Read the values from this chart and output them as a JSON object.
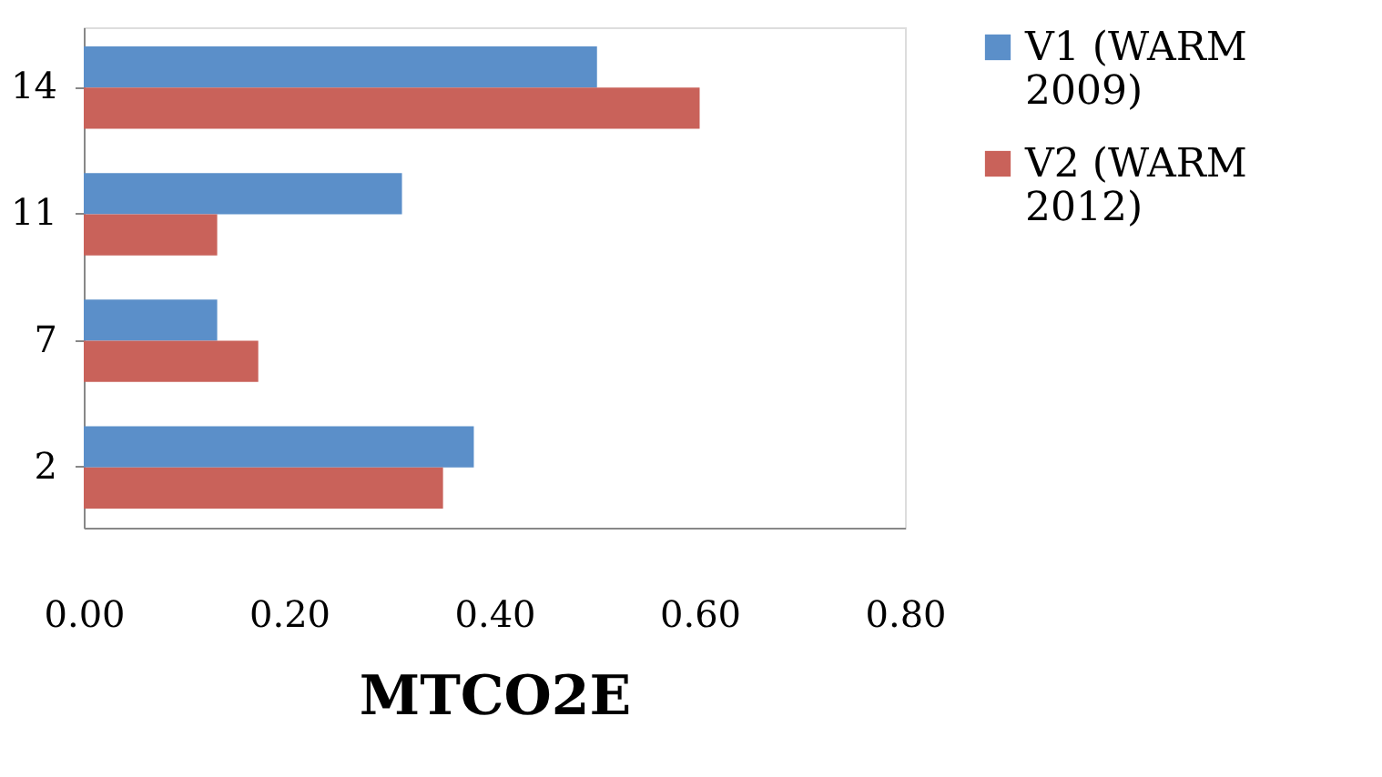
{
  "chart_data": {
    "type": "bar",
    "orientation": "horizontal",
    "xlabel": "MTCO2E",
    "categories": [
      "14",
      "11",
      "7",
      "2"
    ],
    "series": [
      {
        "name": "V1 (WARM 2009)",
        "color": "#5b8fc9",
        "values": [
          0.5,
          0.31,
          0.13,
          0.38
        ]
      },
      {
        "name": "V2 (WARM 2012)",
        "color": "#c9625a",
        "values": [
          0.6,
          0.13,
          0.17,
          0.35
        ]
      }
    ],
    "xlim": [
      0,
      0.8
    ],
    "xticks": [
      {
        "value": 0,
        "label": "0.00"
      },
      {
        "value": 0.2,
        "label": "0.20"
      },
      {
        "value": 0.4,
        "label": "0.40"
      },
      {
        "value": 0.6,
        "label": "0.60"
      },
      {
        "value": 0.8,
        "label": "0.80"
      }
    ],
    "grid": false,
    "legend": "right"
  }
}
